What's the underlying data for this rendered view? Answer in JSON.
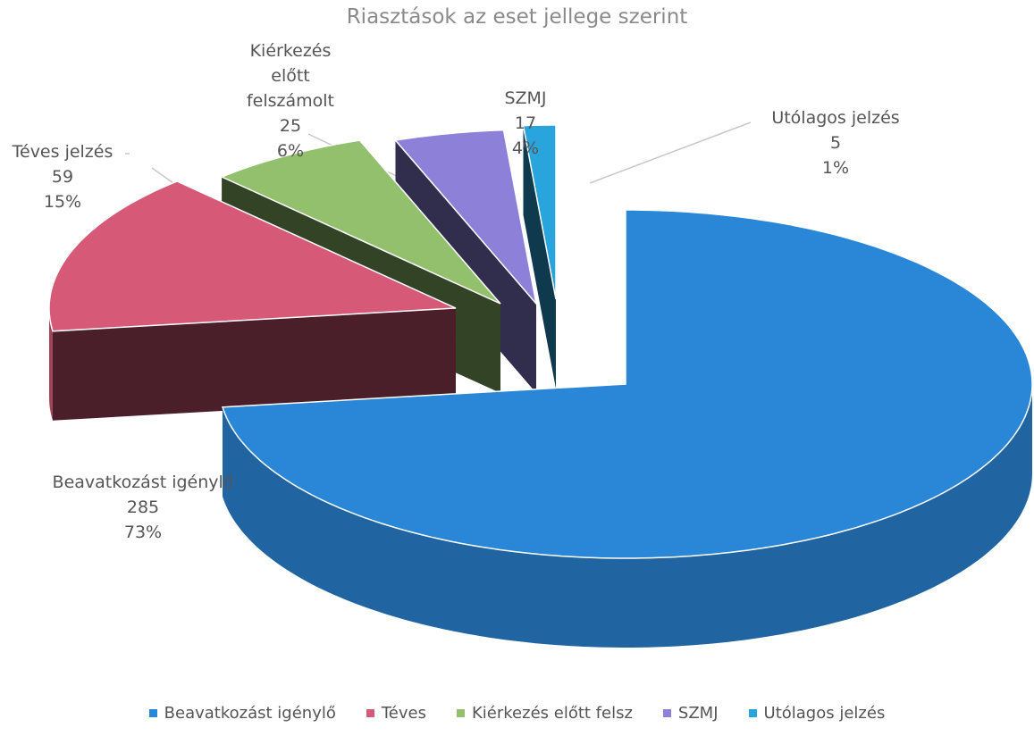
{
  "chart_data": {
    "type": "pie",
    "title": "Riasztások az eset jellege szerint",
    "categories": [
      "Beavatkozást igénylő",
      "Téves jelzés",
      "Kiérkezés előtt felszámolt",
      "SZMJ",
      "Utólagos jelzés"
    ],
    "values": [
      285,
      59,
      25,
      17,
      5
    ],
    "percents": [
      {
        "value": 73,
        "label": "73%"
      },
      {
        "value": 15,
        "label": "15%"
      },
      {
        "value": 6,
        "label": "6%"
      },
      {
        "value": 4,
        "label": "4%"
      },
      {
        "value": 1,
        "label": "1%"
      }
    ],
    "legend": [
      "Beavatkozást igénylő",
      "Téves",
      "Kiérkezés előtt felsz",
      "SZMJ",
      "Utólagos jelzés"
    ],
    "colors": [
      "#2a86d6",
      "#d65a78",
      "#93c06c",
      "#8c80d8",
      "#2aa4dc"
    ],
    "legend_position": "bottom"
  }
}
